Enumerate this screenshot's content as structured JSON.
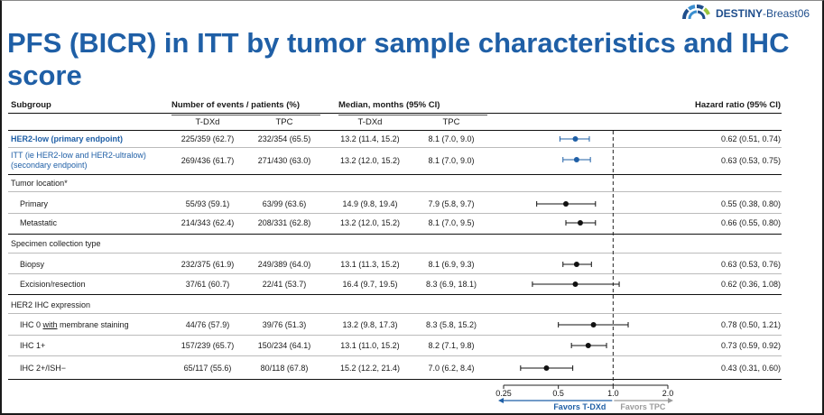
{
  "logo": {
    "brand_bold": "DESTINY",
    "brand_rest": "-Breast06"
  },
  "title": "PFS (BICR) in ITT by tumor sample characteristics and IHC score",
  "headers": {
    "subgroup": "Subgroup",
    "events": "Number of events / patients (%)",
    "median": "Median, months (95% CI)",
    "hazard": "Hazard ratio (95% CI)",
    "t_dxd_1": "T-DXd",
    "tpc_1": "TPC",
    "t_dxd_2": "T-DXd",
    "tpc_2": "TPC"
  },
  "rows": [
    {
      "label": "HER2-low (primary endpoint)",
      "t_events": "225/359 (62.7)",
      "tpc_events": "232/354 (65.5)",
      "t_median": "13.2 (11.4, 15.2)",
      "tpc_median": "8.1 (7.0, 9.0)",
      "hr_text": "0.62 (0.51, 0.74)"
    },
    {
      "label": "ITT (ie HER2-low and HER2-ultralow)",
      "label2": "(secondary endpoint)",
      "t_events": "269/436 (61.7)",
      "tpc_events": "271/430 (63.0)",
      "t_median": "13.2 (12.0, 15.2)",
      "tpc_median": "8.1 (7.0, 9.0)",
      "hr_text": "0.63 (0.53, 0.75)"
    },
    {
      "label": "Tumor location*"
    },
    {
      "label": "Primary",
      "t_events": "55/93 (59.1)",
      "tpc_events": "63/99 (63.6)",
      "t_median": "14.9 (9.8, 19.4)",
      "tpc_median": "7.9 (5.8, 9.7)",
      "hr_text": "0.55 (0.38, 0.80)"
    },
    {
      "label": "Metastatic",
      "t_events": "214/343 (62.4)",
      "tpc_events": "208/331 (62.8)",
      "t_median": "13.2 (12.0, 15.2)",
      "tpc_median": "8.1 (7.0, 9.5)",
      "hr_text": "0.66 (0.55, 0.80)"
    },
    {
      "label": "Specimen collection type"
    },
    {
      "label": "Biopsy",
      "t_events": "232/375 (61.9)",
      "tpc_events": "249/389 (64.0)",
      "t_median": "13.1 (11.3, 15.2)",
      "tpc_median": "8.1 (6.9, 9.3)",
      "hr_text": "0.63 (0.53, 0.76)"
    },
    {
      "label": "Excision/resection",
      "t_events": "37/61 (60.7)",
      "tpc_events": "22/41 (53.7)",
      "t_median": "16.4 (9.7, 19.5)",
      "tpc_median": "8.3 (6.9, 18.1)",
      "hr_text": "0.62 (0.36, 1.08)"
    },
    {
      "label": "HER2 IHC expression"
    },
    {
      "label_pre": "IHC 0 ",
      "label_u": "with",
      "label_post": " membrane staining",
      "t_events": "44/76 (57.9)",
      "tpc_events": "39/76 (51.3)",
      "t_median": "13.2 (9.8, 17.3)",
      "tpc_median": "8.3 (5.8, 15.2)",
      "hr_text": "0.78 (0.50, 1.21)"
    },
    {
      "label": "IHC 1+",
      "t_events": "157/239 (65.7)",
      "tpc_events": "150/234 (64.1)",
      "t_median": "13.1 (11.0, 15.2)",
      "tpc_median": "8.2 (7.1, 9.8)",
      "hr_text": "0.73 (0.59, 0.92)"
    },
    {
      "label": "IHC 2+/ISH−",
      "t_events": "65/117 (55.6)",
      "tpc_events": "80/118 (67.8)",
      "t_median": "15.2 (12.2, 21.4)",
      "tpc_median": "7.0 (6.2, 8.4)",
      "hr_text": "0.43 (0.31, 0.60)"
    }
  ],
  "chart_data": {
    "type": "forest",
    "xscale": "log",
    "xlim": [
      0.25,
      2.0
    ],
    "reference_line": 1.0,
    "ticks": [
      "0.25",
      "0.5",
      "1.0",
      "2.0"
    ],
    "favors_left": "Favors T-DXd",
    "favors_right": "Favors TPC",
    "colors": {
      "primary": "#1f5fa6",
      "default": "#111111",
      "arrow_right": "#9a9a9a"
    },
    "points": [
      {
        "subgroup": "HER2-low (primary endpoint)",
        "hr": 0.62,
        "lo": 0.51,
        "hi": 0.74,
        "color": "#1f5fa6"
      },
      {
        "subgroup": "ITT (ie HER2-low and HER2-ultralow) (secondary endpoint)",
        "hr": 0.63,
        "lo": 0.53,
        "hi": 0.75,
        "color": "#1f5fa6"
      },
      {
        "subgroup": "Primary",
        "hr": 0.55,
        "lo": 0.38,
        "hi": 0.8,
        "color": "#111111"
      },
      {
        "subgroup": "Metastatic",
        "hr": 0.66,
        "lo": 0.55,
        "hi": 0.8,
        "color": "#111111"
      },
      {
        "subgroup": "Biopsy",
        "hr": 0.63,
        "lo": 0.53,
        "hi": 0.76,
        "color": "#111111"
      },
      {
        "subgroup": "Excision/resection",
        "hr": 0.62,
        "lo": 0.36,
        "hi": 1.08,
        "color": "#111111"
      },
      {
        "subgroup": "IHC 0 with membrane staining",
        "hr": 0.78,
        "lo": 0.5,
        "hi": 1.21,
        "color": "#111111"
      },
      {
        "subgroup": "IHC 1+",
        "hr": 0.73,
        "lo": 0.59,
        "hi": 0.92,
        "color": "#111111"
      },
      {
        "subgroup": "IHC 2+/ISH−",
        "hr": 0.43,
        "lo": 0.31,
        "hi": 0.6,
        "color": "#111111"
      }
    ]
  }
}
